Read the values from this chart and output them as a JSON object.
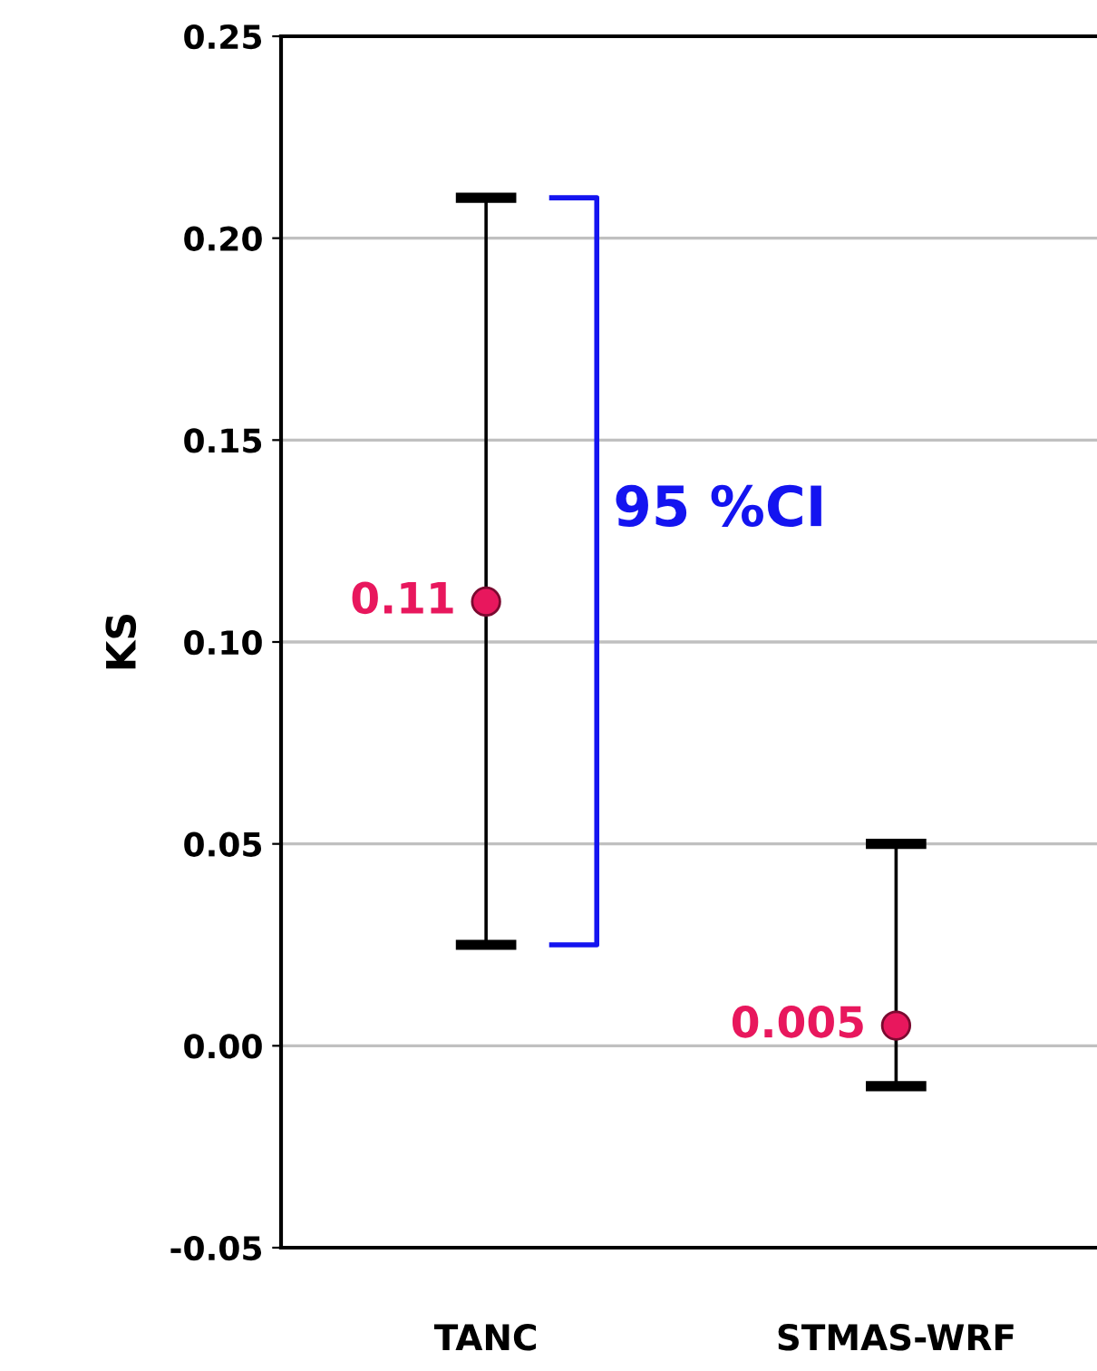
{
  "chart_data": {
    "type": "scatter",
    "ylabel": "KS",
    "categories": [
      "TANC",
      "STMAS-WRF"
    ],
    "series": [
      {
        "color": "#e8175d",
        "values": [
          0.11,
          0.005
        ],
        "errors": [
          [
            0.025,
            0.21
          ],
          [
            -0.01,
            0.05
          ]
        ],
        "value_labels": [
          "0.11",
          "0.005"
        ]
      }
    ],
    "ylim": [
      -0.05,
      0.25
    ],
    "yticks": [
      {
        "value": -0.05,
        "label": "-0.05"
      },
      {
        "value": 0,
        "label": "0.00"
      },
      {
        "value": 0.05,
        "label": "0.05"
      },
      {
        "value": 0.1,
        "label": "0.10"
      },
      {
        "value": 0.15,
        "label": "0.15"
      },
      {
        "value": 0.2,
        "label": "0.20"
      },
      {
        "value": 0.25,
        "label": "0.25"
      }
    ],
    "grid": "y",
    "marker": "circle",
    "annotations": [
      "95 %CI"
    ]
  }
}
